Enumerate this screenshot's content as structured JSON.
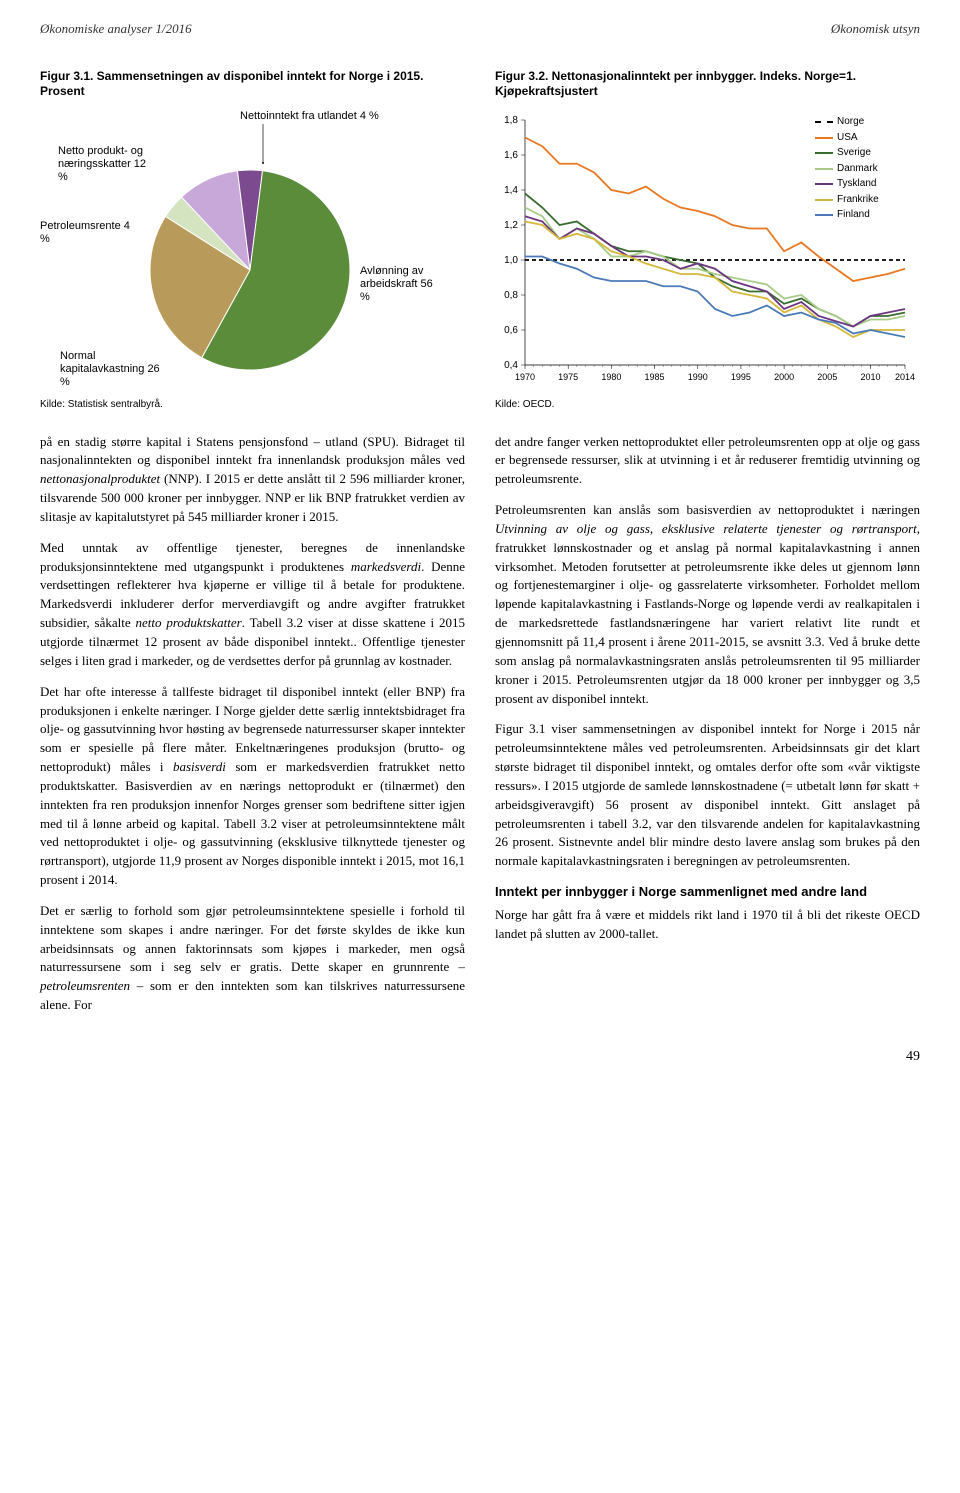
{
  "header": {
    "left": "Økonomiske analyser 1/2016",
    "right": "Økonomisk utsyn"
  },
  "fig31": {
    "title": "Figur 3.1. Sammensetningen av disponibel inntekt for Norge i 2015. Prosent",
    "labels": {
      "nettoinntekt": "Nettoinntekt fra utlandet 4 %",
      "netto_produkt": "Netto produkt- og næringsskatter 12 %",
      "petroleum": "Petroleumsrente 4 %",
      "normal": "Normal kapitalavkastning 26 %",
      "avlonning": "Avlønning av arbeidskraft 56 %"
    },
    "slices": [
      {
        "name": "Avlønning av arbeidskraft",
        "value": 56,
        "color": "#5a8c3a"
      },
      {
        "name": "Normal kapitalavkastning",
        "value": 26,
        "color": "#c8a8d8"
      },
      {
        "name": "Netto produkt- og næringsskatter",
        "value": 12,
        "color": "#7b4a8f"
      },
      {
        "name": "Nettoinntekt fra utlandet",
        "value": 4,
        "color": "#b89a5a"
      },
      {
        "name": "Petroleumsrente",
        "value": 4,
        "color": "#d4e4c0"
      }
    ],
    "kilde": "Kilde: Statistisk sentralbyrå."
  },
  "fig32": {
    "title": "Figur 3.2. Nettonasjonalinntekt per innbygger. Indeks. Norge=1. Kjøpekraftsjustert",
    "ylim": [
      0.4,
      1.8
    ],
    "yticks": [
      0.4,
      0.6,
      0.8,
      1.0,
      1.2,
      1.4,
      1.6,
      1.8
    ],
    "xlim": [
      1970,
      2014
    ],
    "xticks": [
      1970,
      1975,
      1980,
      1985,
      1990,
      1995,
      2000,
      2005,
      2010,
      2014
    ],
    "series": [
      {
        "name": "Norge",
        "color": "#000000",
        "dash": "4,3",
        "data": [
          [
            1970,
            1.0
          ],
          [
            1975,
            1.0
          ],
          [
            1980,
            1.0
          ],
          [
            1985,
            1.0
          ],
          [
            1990,
            1.0
          ],
          [
            1995,
            1.0
          ],
          [
            2000,
            1.0
          ],
          [
            2005,
            1.0
          ],
          [
            2010,
            1.0
          ],
          [
            2014,
            1.0
          ]
        ]
      },
      {
        "name": "USA",
        "color": "#e87722",
        "dash": "",
        "data": [
          [
            1970,
            1.7
          ],
          [
            1972,
            1.65
          ],
          [
            1974,
            1.55
          ],
          [
            1976,
            1.55
          ],
          [
            1978,
            1.5
          ],
          [
            1980,
            1.4
          ],
          [
            1982,
            1.38
          ],
          [
            1984,
            1.42
          ],
          [
            1986,
            1.35
          ],
          [
            1988,
            1.3
          ],
          [
            1990,
            1.28
          ],
          [
            1992,
            1.25
          ],
          [
            1994,
            1.2
          ],
          [
            1996,
            1.18
          ],
          [
            1998,
            1.18
          ],
          [
            2000,
            1.05
          ],
          [
            2002,
            1.1
          ],
          [
            2004,
            1.02
          ],
          [
            2006,
            0.95
          ],
          [
            2008,
            0.88
          ],
          [
            2010,
            0.9
          ],
          [
            2012,
            0.92
          ],
          [
            2014,
            0.95
          ]
        ]
      },
      {
        "name": "Sverige",
        "color": "#3a6b2f",
        "dash": "",
        "data": [
          [
            1970,
            1.38
          ],
          [
            1972,
            1.3
          ],
          [
            1974,
            1.2
          ],
          [
            1976,
            1.22
          ],
          [
            1978,
            1.15
          ],
          [
            1980,
            1.08
          ],
          [
            1982,
            1.05
          ],
          [
            1984,
            1.05
          ],
          [
            1986,
            1.02
          ],
          [
            1988,
            1.0
          ],
          [
            1990,
            0.98
          ],
          [
            1992,
            0.9
          ],
          [
            1994,
            0.85
          ],
          [
            1996,
            0.82
          ],
          [
            1998,
            0.82
          ],
          [
            2000,
            0.75
          ],
          [
            2002,
            0.78
          ],
          [
            2004,
            0.72
          ],
          [
            2006,
            0.68
          ],
          [
            2008,
            0.62
          ],
          [
            2010,
            0.68
          ],
          [
            2012,
            0.68
          ],
          [
            2014,
            0.7
          ]
        ]
      },
      {
        "name": "Danmark",
        "color": "#a8cc88",
        "dash": "",
        "data": [
          [
            1970,
            1.3
          ],
          [
            1972,
            1.25
          ],
          [
            1974,
            1.12
          ],
          [
            1976,
            1.18
          ],
          [
            1978,
            1.12
          ],
          [
            1980,
            1.02
          ],
          [
            1982,
            1.02
          ],
          [
            1984,
            1.05
          ],
          [
            1986,
            1.02
          ],
          [
            1988,
            0.95
          ],
          [
            1990,
            0.95
          ],
          [
            1992,
            0.92
          ],
          [
            1994,
            0.9
          ],
          [
            1996,
            0.88
          ],
          [
            1998,
            0.86
          ],
          [
            2000,
            0.78
          ],
          [
            2002,
            0.8
          ],
          [
            2004,
            0.72
          ],
          [
            2006,
            0.68
          ],
          [
            2008,
            0.62
          ],
          [
            2010,
            0.66
          ],
          [
            2012,
            0.66
          ],
          [
            2014,
            0.68
          ]
        ]
      },
      {
        "name": "Tyskland",
        "color": "#6b3580",
        "dash": "",
        "data": [
          [
            1970,
            1.25
          ],
          [
            1972,
            1.22
          ],
          [
            1974,
            1.12
          ],
          [
            1976,
            1.18
          ],
          [
            1978,
            1.15
          ],
          [
            1980,
            1.08
          ],
          [
            1982,
            1.02
          ],
          [
            1984,
            1.02
          ],
          [
            1986,
            1.0
          ],
          [
            1988,
            0.95
          ],
          [
            1990,
            0.98
          ],
          [
            1992,
            0.95
          ],
          [
            1994,
            0.88
          ],
          [
            1996,
            0.85
          ],
          [
            1998,
            0.82
          ],
          [
            2000,
            0.72
          ],
          [
            2002,
            0.76
          ],
          [
            2004,
            0.68
          ],
          [
            2006,
            0.65
          ],
          [
            2008,
            0.62
          ],
          [
            2010,
            0.68
          ],
          [
            2012,
            0.7
          ],
          [
            2014,
            0.72
          ]
        ]
      },
      {
        "name": "Frankrike",
        "color": "#d4b83a",
        "dash": "",
        "data": [
          [
            1970,
            1.22
          ],
          [
            1972,
            1.2
          ],
          [
            1974,
            1.12
          ],
          [
            1976,
            1.15
          ],
          [
            1978,
            1.12
          ],
          [
            1980,
            1.05
          ],
          [
            1982,
            1.02
          ],
          [
            1984,
            0.98
          ],
          [
            1986,
            0.95
          ],
          [
            1988,
            0.92
          ],
          [
            1990,
            0.92
          ],
          [
            1992,
            0.9
          ],
          [
            1994,
            0.82
          ],
          [
            1996,
            0.8
          ],
          [
            1998,
            0.78
          ],
          [
            2000,
            0.7
          ],
          [
            2002,
            0.74
          ],
          [
            2004,
            0.66
          ],
          [
            2006,
            0.62
          ],
          [
            2008,
            0.56
          ],
          [
            2010,
            0.6
          ],
          [
            2012,
            0.6
          ],
          [
            2014,
            0.6
          ]
        ]
      },
      {
        "name": "Finland",
        "color": "#4a7ab8",
        "dash": "",
        "data": [
          [
            1970,
            1.02
          ],
          [
            1972,
            1.02
          ],
          [
            1974,
            0.98
          ],
          [
            1976,
            0.95
          ],
          [
            1978,
            0.9
          ],
          [
            1980,
            0.88
          ],
          [
            1982,
            0.88
          ],
          [
            1984,
            0.88
          ],
          [
            1986,
            0.85
          ],
          [
            1988,
            0.85
          ],
          [
            1990,
            0.82
          ],
          [
            1992,
            0.72
          ],
          [
            1994,
            0.68
          ],
          [
            1996,
            0.7
          ],
          [
            1998,
            0.74
          ],
          [
            2000,
            0.68
          ],
          [
            2002,
            0.7
          ],
          [
            2004,
            0.66
          ],
          [
            2006,
            0.64
          ],
          [
            2008,
            0.58
          ],
          [
            2010,
            0.6
          ],
          [
            2012,
            0.58
          ],
          [
            2014,
            0.56
          ]
        ]
      }
    ],
    "kilde": "Kilde: OECD.",
    "background_color": "#ffffff",
    "grid_color": "#cccccc"
  },
  "body": {
    "left": [
      "på en stadig større kapital i Statens pensjonsfond – utland (SPU). Bidraget til nasjonalinntekten og disponibel inntekt fra innenlandsk produksjon måles ved <span class=\"italic\">nettonasjonalproduktet</span> (NNP). I 2015 er dette anslått til 2 596 milliarder kroner, tilsvarende 500 000 kroner per innbygger. NNP er lik BNP fratrukket verdien av slitasje av kapitalutstyret på 545 milliarder kroner i 2015.",
      "Med unntak av offentlige tjenester, beregnes de innenlandske produksjonsinntektene med utgangspunkt i produktenes <span class=\"italic\">markedsverdi</span>. Denne verdsettingen reflekterer hva kjøperne er villige til å betale for produktene. Markedsverdi inkluderer derfor merverdiavgift og andre avgifter fratrukket subsidier, såkalte <span class=\"italic\">netto produktskatter</span>. Tabell 3.2 viser at disse skattene i 2015 utgjorde tilnærmet 12 prosent av både disponibel inntekt.. Offentlige tjenester selges i liten grad i markeder, og de verdsettes derfor på grunnlag av kostnader.",
      "Det har ofte interesse å tallfeste bidraget til disponibel inntekt (eller BNP) fra produksjonen i enkelte næringer. I Norge gjelder dette særlig inntektsbidraget fra olje- og gassutvinning hvor høsting av begrensede naturressurser skaper inntekter som er spesielle på flere måter. Enkeltnæringenes produksjon (brutto- og nettoprodukt) måles i <span class=\"italic\">basisverdi</span> som er markedsverdien fratrukket netto produktskatter. Basisverdien av en nærings nettoprodukt er (tilnærmet) den inntekten fra ren produksjon innenfor Norges grenser som bedriftene sitter igjen med til å lønne arbeid og kapital. Tabell 3.2 viser at petroleumsinntektene målt ved nettoproduktet i olje- og gassutvinning (eksklusive tilknyttede tjenester og rørtransport), utgjorde 11,9 prosent av Norges disponible inntekt i 2015, mot 16,1 prosent i 2014.",
      "Det er særlig to forhold som gjør petroleumsinntektene spesielle i forhold til inntektene som skapes i andre næringer. For det første skyldes de ikke kun arbeidsinnsats og annen faktorinnsats som kjøpes i markeder, men også naturressursene som i seg selv er gratis. Dette skaper en grunnrente – <span class=\"italic\">petroleumsrenten</span> – som er den inntekten som kan tilskrives naturressursene alene. For"
    ],
    "right": [
      "det andre fanger verken nettoproduktet eller petroleumsrenten opp at olje og gass er begrensede ressurser, slik at utvinning i et år reduserer fremtidig utvinning og petroleumsrente.",
      "Petroleumsrenten kan anslås som basisverdien av nettoproduktet i næringen <span class=\"italic\">Utvinning av olje og gass, eksklusive relaterte tjenester og rørtransport</span>, fratrukket lønnskostnader og et anslag på normal kapitalavkastning i annen virksomhet. Metoden forutsetter at petroleumsrente ikke deles ut gjennom lønn og fortjenestemarginer i olje- og gassrelaterte virksomheter. Forholdet mellom løpende kapitalavkastning i Fastlands-Norge og løpende verdi av realkapitalen i de markedsrettede fastlandsnæringene har variert relativt lite rundt et gjennomsnitt på 11,4 prosent i årene 2011-2015, se avsnitt 3.3. Ved å bruke dette som anslag på normalavkastningsraten anslås petroleumsrenten til 95 milliarder kroner i 2015. Petroleumsrenten utgjør da 18 000 kroner per innbygger og 3,5 prosent av disponibel inntekt.",
      "Figur 3.1 viser sammensetningen av disponibel inntekt for Norge i 2015 når petroleumsinntektene måles ved petroleumsrenten. Arbeidsinnsats gir det klart største bidraget til disponibel inntekt, og omtales derfor ofte som «vår viktigste ressurs». I 2015 utgjorde de samlede lønnskostnadene (= utbetalt lønn før skatt + arbeidsgiveravgift) 56 prosent av disponibel inntekt. Gitt anslaget på petroleumsrenten i tabell 3.2, var den tilsvarende andelen for kapitalavkastning 26 prosent. Sistnevnte andel blir mindre desto lavere anslag som brukes på den normale kapitalavkastningsraten i beregningen av petroleumsrenten."
    ],
    "heading": "Inntekt per innbygger i Norge sammenlignet med andre land",
    "heading_para": "Norge har gått fra å være et middels rikt land i 1970 til å bli det rikeste OECD landet på slutten av 2000-tallet."
  },
  "page_num": "49"
}
